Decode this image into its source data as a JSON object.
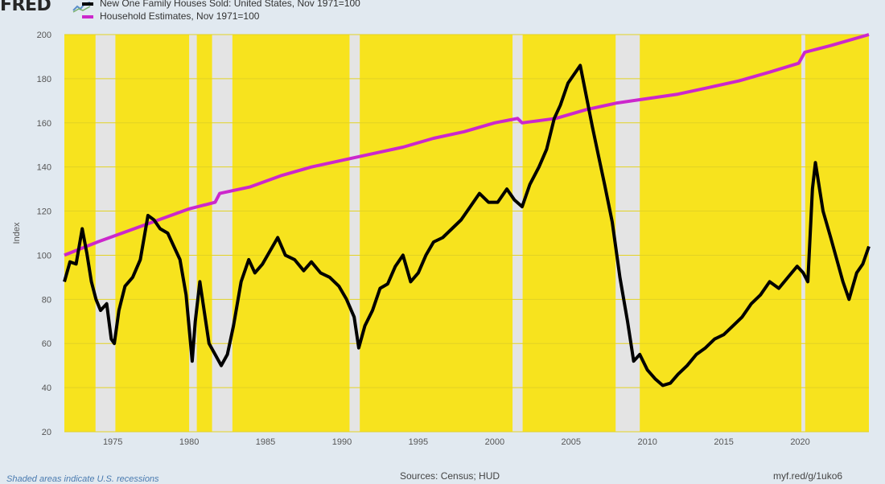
{
  "header": {
    "logo_text": "FRED",
    "legend": [
      {
        "label": "New One Family Houses Sold: United States, Nov 1971=100",
        "color": "#000000"
      },
      {
        "label": "Household Estimates, Nov 1971=100",
        "color": "#cc27cc"
      }
    ]
  },
  "footer": {
    "note": "Shaded areas indicate U.S. recessions",
    "source": "Sources: Census; HUD",
    "link": "myf.red/g/1uko6"
  },
  "colors": {
    "background": "#e1e9f0",
    "plot_fill": "#f7e31e",
    "recession": "#e4e4e4"
  },
  "chart_data": {
    "type": "line",
    "title": "",
    "xlabel": "",
    "ylabel": "Index",
    "xlim": [
      1971.83,
      2024.5
    ],
    "ylim": [
      20,
      200
    ],
    "yticks": [
      20,
      40,
      60,
      80,
      100,
      120,
      140,
      160,
      180,
      200
    ],
    "xticks": [
      1975,
      1980,
      1985,
      1990,
      1995,
      2000,
      2005,
      2010,
      2015,
      2020
    ],
    "recessions": [
      [
        1973.87,
        1975.17
      ],
      [
        1980.0,
        1980.5
      ],
      [
        1981.5,
        1982.83
      ],
      [
        1990.5,
        1991.17
      ],
      [
        2001.17,
        2001.83
      ],
      [
        2007.92,
        2009.5
      ],
      [
        2020.08,
        2020.33
      ]
    ],
    "series": [
      {
        "name": "New One Family Houses Sold: United States, Nov 1971=100",
        "color": "#000000",
        "x": [
          1971.83,
          1972.2,
          1972.6,
          1973.0,
          1973.3,
          1973.6,
          1973.9,
          1974.2,
          1974.6,
          1974.9,
          1975.1,
          1975.4,
          1975.8,
          1976.3,
          1976.8,
          1977.3,
          1977.7,
          1978.1,
          1978.6,
          1979.0,
          1979.4,
          1979.8,
          1980.2,
          1980.4,
          1980.7,
          1981.0,
          1981.3,
          1981.7,
          1982.1,
          1982.5,
          1982.9,
          1983.4,
          1983.9,
          1984.3,
          1984.8,
          1985.3,
          1985.8,
          1986.3,
          1986.9,
          1987.5,
          1988.0,
          1988.6,
          1989.2,
          1989.8,
          1990.3,
          1990.8,
          1991.1,
          1991.5,
          1992.0,
          1992.5,
          1993.0,
          1993.5,
          1994.0,
          1994.5,
          1995.0,
          1995.5,
          1996.0,
          1996.6,
          1997.2,
          1997.8,
          1998.4,
          1999.0,
          1999.6,
          2000.2,
          2000.8,
          2001.3,
          2001.8,
          2002.3,
          2002.9,
          2003.4,
          2003.9,
          2004.3,
          2004.8,
          2005.2,
          2005.6,
          2006.0,
          2006.4,
          2006.8,
          2007.2,
          2007.7,
          2008.2,
          2008.7,
          2009.1,
          2009.5,
          2010.0,
          2010.5,
          2011.0,
          2011.5,
          2012.0,
          2012.6,
          2013.2,
          2013.8,
          2014.4,
          2015.0,
          2015.6,
          2016.2,
          2016.8,
          2017.4,
          2018.0,
          2018.6,
          2019.2,
          2019.8,
          2020.2,
          2020.5,
          2020.8,
          2021.0,
          2021.5,
          2022.0,
          2022.4,
          2022.8,
          2023.2,
          2023.7,
          2024.1,
          2024.5
        ],
        "values": [
          88,
          97,
          96,
          112,
          101,
          88,
          80,
          75,
          78,
          62,
          60,
          75,
          86,
          90,
          98,
          118,
          116,
          112,
          110,
          104,
          98,
          82,
          52,
          70,
          88,
          74,
          60,
          55,
          50,
          55,
          68,
          88,
          98,
          92,
          96,
          102,
          108,
          100,
          98,
          93,
          97,
          92,
          90,
          86,
          80,
          72,
          58,
          68,
          75,
          85,
          87,
          95,
          100,
          88,
          92,
          100,
          106,
          108,
          112,
          116,
          122,
          128,
          124,
          124,
          130,
          125,
          122,
          132,
          140,
          148,
          162,
          168,
          178,
          182,
          186,
          172,
          158,
          145,
          132,
          115,
          90,
          70,
          52,
          55,
          48,
          44,
          41,
          42,
          46,
          50,
          55,
          58,
          62,
          64,
          68,
          72,
          78,
          82,
          88,
          85,
          90,
          95,
          92,
          88,
          130,
          142,
          120,
          108,
          98,
          88,
          80,
          92,
          96,
          104
        ]
      },
      {
        "name": "Household Estimates, Nov 1971=100",
        "color": "#cc27cc",
        "x": [
          1971.83,
          1974.0,
          1976.0,
          1978.0,
          1980.0,
          1981.7,
          1982.0,
          1984.0,
          1986.0,
          1988.0,
          1990.0,
          1992.0,
          1994.0,
          1996.0,
          1998.0,
          2000.0,
          2001.5,
          2001.8,
          2004.0,
          2006.0,
          2008.0,
          2010.0,
          2012.0,
          2014.0,
          2016.0,
          2018.0,
          2019.9,
          2020.3,
          2022.0,
          2024.5
        ],
        "values": [
          100,
          106,
          111,
          116,
          121,
          124,
          128,
          131,
          136,
          140,
          143,
          146,
          149,
          153,
          156,
          160,
          162,
          160,
          162,
          166,
          169,
          171,
          173,
          176,
          179,
          183,
          187,
          192,
          195,
          200
        ]
      }
    ]
  }
}
